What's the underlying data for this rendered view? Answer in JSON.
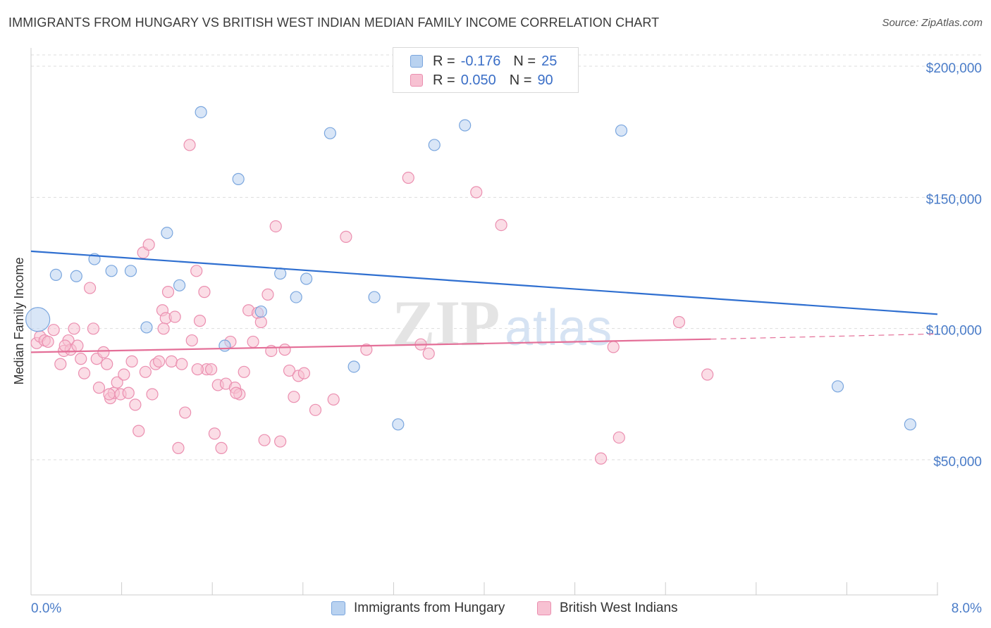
{
  "header": {
    "title": "IMMIGRANTS FROM HUNGARY VS BRITISH WEST INDIAN MEDIAN FAMILY INCOME CORRELATION CHART",
    "source": "Source: ZipAtlas.com"
  },
  "watermark": {
    "zip": "ZIP",
    "atlas": "atlas"
  },
  "legend": {
    "r_label": "R =",
    "n_label": "N =",
    "series": [
      {
        "name": "Immigrants from Hungary",
        "r": "-0.176",
        "n": "25"
      },
      {
        "name": "British West Indians",
        "r": "0.050",
        "n": "90"
      }
    ]
  },
  "colors": {
    "blue_fill": "#b9d2f0",
    "blue_stroke": "#7aa6de",
    "blue_line": "#2f6fd0",
    "pink_fill": "#f7c1d2",
    "pink_stroke": "#eb8fb0",
    "pink_line": "#e46f98",
    "axis_text": "#4a7cc8",
    "grid": "#dddddd"
  },
  "chart_data": {
    "type": "scatter",
    "title": "IMMIGRANTS FROM HUNGARY VS BRITISH WEST INDIAN MEDIAN FAMILY INCOME CORRELATION CHART",
    "xlabel": "",
    "ylabel": "Median Family Income",
    "xlim": [
      0,
      8.0
    ],
    "ylim": [
      0,
      210000
    ],
    "x_tick_labels": [
      "0.0%",
      "8.0%"
    ],
    "y_ticks": [
      50000,
      100000,
      150000,
      200000
    ],
    "y_tick_labels": [
      "$50,000",
      "$100,000",
      "$150,000",
      "$200,000"
    ],
    "grid": true,
    "legend_position": "top-center",
    "series": [
      {
        "name": "Immigrants from Hungary",
        "color": "blue",
        "trend": {
          "x": [
            0.0,
            8.0
          ],
          "y": [
            130000,
            106000
          ],
          "dashed_from": null
        },
        "points": [
          {
            "x": 0.06,
            "y": 104000,
            "big": true
          },
          {
            "x": 0.22,
            "y": 121000
          },
          {
            "x": 0.4,
            "y": 120500
          },
          {
            "x": 0.56,
            "y": 127000
          },
          {
            "x": 0.71,
            "y": 122500
          },
          {
            "x": 0.88,
            "y": 122500
          },
          {
            "x": 1.02,
            "y": 101000
          },
          {
            "x": 1.2,
            "y": 137000
          },
          {
            "x": 1.31,
            "y": 117000
          },
          {
            "x": 1.5,
            "y": 183000
          },
          {
            "x": 1.71,
            "y": 94000
          },
          {
            "x": 1.83,
            "y": 157500
          },
          {
            "x": 2.03,
            "y": 107000
          },
          {
            "x": 2.2,
            "y": 121500
          },
          {
            "x": 2.34,
            "y": 112500
          },
          {
            "x": 2.43,
            "y": 119500
          },
          {
            "x": 2.64,
            "y": 175000
          },
          {
            "x": 2.85,
            "y": 86000
          },
          {
            "x": 3.03,
            "y": 112500
          },
          {
            "x": 3.24,
            "y": 64000
          },
          {
            "x": 3.56,
            "y": 170500
          },
          {
            "x": 3.83,
            "y": 178000
          },
          {
            "x": 5.21,
            "y": 176000
          },
          {
            "x": 7.12,
            "y": 78500
          },
          {
            "x": 7.76,
            "y": 64000
          }
        ]
      },
      {
        "name": "British West Indians",
        "color": "pink",
        "trend": {
          "x": [
            0.0,
            6.0,
            8.0
          ],
          "y": [
            91500,
            96500,
            98500
          ],
          "dashed_from": 6.0
        },
        "points": [
          {
            "x": 0.05,
            "y": 95000
          },
          {
            "x": 0.08,
            "y": 97500
          },
          {
            "x": 0.12,
            "y": 96000
          },
          {
            "x": 0.15,
            "y": 95500
          },
          {
            "x": 0.2,
            "y": 100000
          },
          {
            "x": 0.26,
            "y": 87000
          },
          {
            "x": 0.29,
            "y": 92000
          },
          {
            "x": 0.33,
            "y": 96000
          },
          {
            "x": 0.35,
            "y": 92500
          },
          {
            "x": 0.38,
            "y": 100500
          },
          {
            "x": 0.41,
            "y": 94000
          },
          {
            "x": 0.44,
            "y": 89000
          },
          {
            "x": 0.47,
            "y": 83500
          },
          {
            "x": 0.52,
            "y": 116000
          },
          {
            "x": 0.55,
            "y": 100500
          },
          {
            "x": 0.58,
            "y": 89000
          },
          {
            "x": 0.6,
            "y": 78000
          },
          {
            "x": 0.64,
            "y": 91500
          },
          {
            "x": 0.67,
            "y": 87000
          },
          {
            "x": 0.7,
            "y": 74000
          },
          {
            "x": 0.73,
            "y": 76000
          },
          {
            "x": 0.76,
            "y": 80000
          },
          {
            "x": 0.79,
            "y": 75500
          },
          {
            "x": 0.82,
            "y": 83000
          },
          {
            "x": 0.86,
            "y": 76000
          },
          {
            "x": 0.89,
            "y": 88000
          },
          {
            "x": 0.92,
            "y": 71500
          },
          {
            "x": 0.95,
            "y": 61500
          },
          {
            "x": 0.99,
            "y": 129500
          },
          {
            "x": 1.01,
            "y": 84000
          },
          {
            "x": 1.04,
            "y": 132500
          },
          {
            "x": 1.07,
            "y": 75500
          },
          {
            "x": 1.1,
            "y": 87000
          },
          {
            "x": 1.13,
            "y": 88000
          },
          {
            "x": 1.16,
            "y": 107500
          },
          {
            "x": 1.19,
            "y": 104500
          },
          {
            "x": 1.21,
            "y": 114500
          },
          {
            "x": 1.24,
            "y": 88000
          },
          {
            "x": 1.27,
            "y": 105000
          },
          {
            "x": 1.3,
            "y": 55000
          },
          {
            "x": 1.33,
            "y": 87000
          },
          {
            "x": 1.36,
            "y": 68500
          },
          {
            "x": 1.4,
            "y": 170500
          },
          {
            "x": 1.42,
            "y": 96000
          },
          {
            "x": 1.46,
            "y": 122500
          },
          {
            "x": 1.49,
            "y": 103500
          },
          {
            "x": 1.53,
            "y": 114500
          },
          {
            "x": 1.55,
            "y": 85000
          },
          {
            "x": 1.59,
            "y": 85000
          },
          {
            "x": 1.62,
            "y": 60500
          },
          {
            "x": 1.65,
            "y": 79000
          },
          {
            "x": 1.68,
            "y": 55000
          },
          {
            "x": 1.72,
            "y": 79500
          },
          {
            "x": 1.76,
            "y": 95500
          },
          {
            "x": 1.8,
            "y": 78000
          },
          {
            "x": 1.84,
            "y": 75500
          },
          {
            "x": 1.88,
            "y": 84000
          },
          {
            "x": 1.92,
            "y": 107500
          },
          {
            "x": 1.96,
            "y": 95500
          },
          {
            "x": 2.0,
            "y": 106500
          },
          {
            "x": 2.03,
            "y": 103000
          },
          {
            "x": 2.06,
            "y": 58000
          },
          {
            "x": 2.09,
            "y": 113500
          },
          {
            "x": 2.12,
            "y": 92000
          },
          {
            "x": 2.16,
            "y": 139500
          },
          {
            "x": 2.2,
            "y": 57500
          },
          {
            "x": 2.24,
            "y": 92500
          },
          {
            "x": 2.28,
            "y": 84500
          },
          {
            "x": 2.32,
            "y": 74500
          },
          {
            "x": 2.36,
            "y": 82500
          },
          {
            "x": 2.41,
            "y": 83500
          },
          {
            "x": 2.51,
            "y": 69500
          },
          {
            "x": 2.67,
            "y": 73500
          },
          {
            "x": 2.78,
            "y": 135500
          },
          {
            "x": 2.96,
            "y": 92500
          },
          {
            "x": 3.33,
            "y": 158000
          },
          {
            "x": 3.44,
            "y": 94500
          },
          {
            "x": 3.51,
            "y": 91000
          },
          {
            "x": 3.93,
            "y": 152500
          },
          {
            "x": 4.15,
            "y": 140000
          },
          {
            "x": 5.03,
            "y": 51000
          },
          {
            "x": 5.14,
            "y": 93500
          },
          {
            "x": 5.19,
            "y": 59000
          },
          {
            "x": 5.72,
            "y": 103000
          },
          {
            "x": 5.97,
            "y": 83000
          },
          {
            "x": 1.17,
            "y": 100500
          },
          {
            "x": 1.47,
            "y": 85000
          },
          {
            "x": 1.81,
            "y": 76000
          },
          {
            "x": 0.69,
            "y": 75500
          },
          {
            "x": 0.3,
            "y": 94000
          }
        ]
      }
    ]
  }
}
